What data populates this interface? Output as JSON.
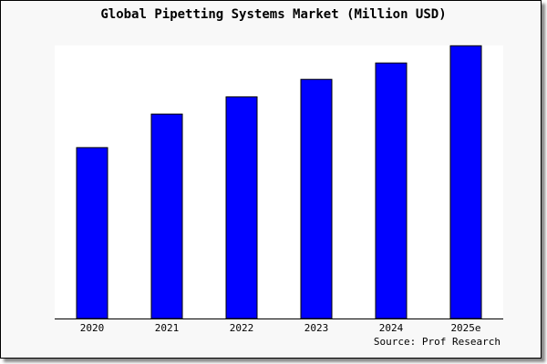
{
  "chart_data": {
    "type": "bar",
    "title": "Global Pipetting Systems Market (Million USD)",
    "categories": [
      "2020",
      "2021",
      "2022",
      "2023",
      "2024",
      "2025e"
    ],
    "values": [
      62.6,
      74.9,
      81.2,
      87.6,
      93.6,
      99.9
    ],
    "xlabel": "",
    "ylabel": "",
    "ylim": [
      0,
      100
    ],
    "y_axis_labels_shown": false,
    "grid": false,
    "bar_color": "#0000ff",
    "source": "Source: Prof Research"
  }
}
